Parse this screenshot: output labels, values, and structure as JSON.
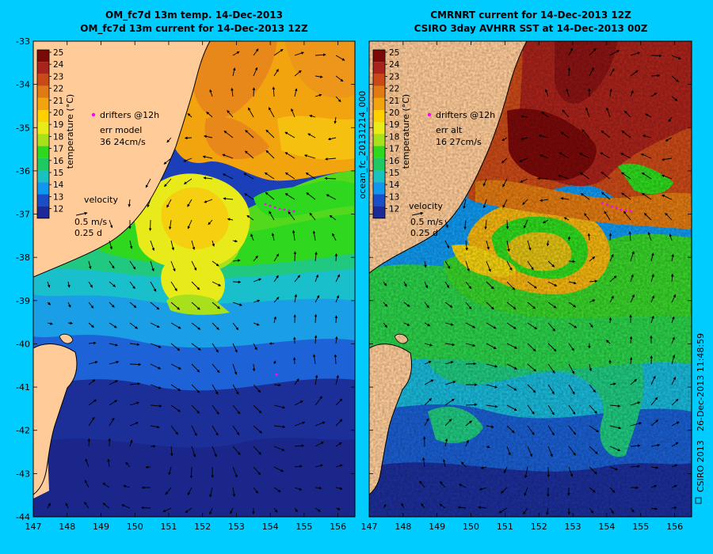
{
  "panels": [
    {
      "id": "left",
      "title1": "OM_fc7d 13m temp. 14-Dec-2013",
      "title2": "OM_fc7d 13m current for 14-Dec-2013 12Z",
      "legend": {
        "drifters": "drifters @12h",
        "err_label": "err model",
        "err_value": "36 24cm/s",
        "velocity_label": "velocity",
        "velocity_speed": "0.5 m/s",
        "velocity_time": "0.25 d"
      }
    },
    {
      "id": "right",
      "title1": "CMRNRT current for 14-Dec-2013 12Z",
      "title2": "CSIRO 3day AVHRR SST at 14-Dec-2013 00Z",
      "side_label": "ocean_fc_20131214_000",
      "legend": {
        "drifters": "drifters @12h",
        "err_label": "err alt",
        "err_value": "16 27cm/s",
        "velocity_label": "velocity",
        "velocity_speed": "0.5 m/s",
        "velocity_time": "0.25 d"
      }
    }
  ],
  "colorbar": {
    "label": "temperature (°C)",
    "ticks": [
      "25",
      "24",
      "23",
      "22",
      "21",
      "20",
      "19",
      "18",
      "17",
      "16",
      "15",
      "14",
      "13",
      "12"
    ],
    "colors": [
      "#7a0a0a",
      "#a8231b",
      "#c94a18",
      "#e07a12",
      "#f2a40e",
      "#ffd000",
      "#e8ea1a",
      "#a8e01c",
      "#2fd81e",
      "#20c864",
      "#19c2c0",
      "#1098ee",
      "#1a4ec8",
      "#1c2a98"
    ]
  },
  "axes": {
    "lon_ticks": [
      "147",
      "148",
      "149",
      "150",
      "151",
      "152",
      "153",
      "154",
      "155",
      "156"
    ],
    "lat_ticks": [
      "-33",
      "-34",
      "-35",
      "-36",
      "-37",
      "-38",
      "-39",
      "-40",
      "-41",
      "-42",
      "-43",
      "-44"
    ],
    "lon_range": [
      147,
      156.5
    ],
    "lat_range": [
      -44,
      -33
    ]
  },
  "footer": {
    "credit": "CSIRO 2013",
    "timestamp": "26-Dec-2013 11:48:59"
  }
}
